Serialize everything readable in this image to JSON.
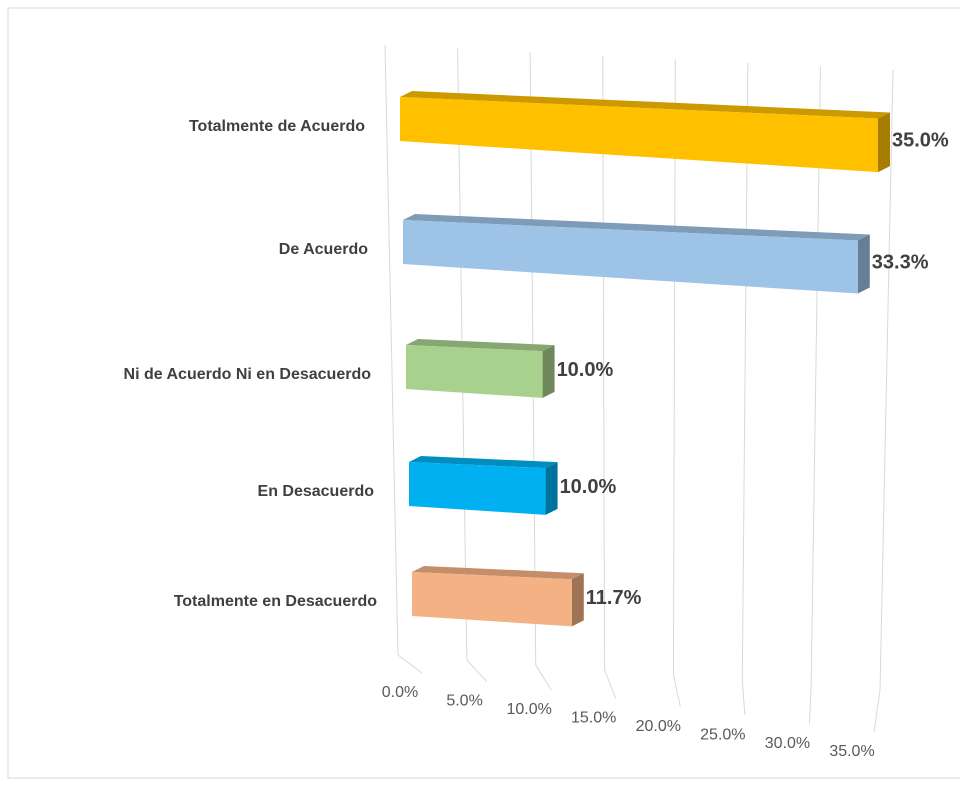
{
  "chart_data": {
    "type": "bar3d-horizontal",
    "categories": [
      "Totalmente de Acuerdo",
      "De Acuerdo",
      "Ni de Acuerdo Ni en Desacuerdo",
      "En Desacuerdo",
      "Totalmente en Desacuerdo"
    ],
    "values": [
      35.0,
      33.3,
      10.0,
      10.0,
      11.7
    ],
    "value_labels": [
      "35.0%",
      "33.3%",
      "10.0%",
      "10.0%",
      "11.7%"
    ],
    "colors": [
      "#ffc000",
      "#9dc3e6",
      "#a9d18e",
      "#00b0f0",
      "#f4b183"
    ],
    "xlim": [
      0,
      35
    ],
    "xticks": [
      {
        "value": 0,
        "label": "0.0%"
      },
      {
        "value": 5,
        "label": "5.0%"
      },
      {
        "value": 10,
        "label": "10.0%"
      },
      {
        "value": 15,
        "label": "15.0%"
      },
      {
        "value": 20,
        "label": "20.0%"
      },
      {
        "value": 25,
        "label": "25.0%"
      },
      {
        "value": 30,
        "label": "30.0%"
      },
      {
        "value": 35,
        "label": "35.0%"
      }
    ],
    "grid": true
  }
}
